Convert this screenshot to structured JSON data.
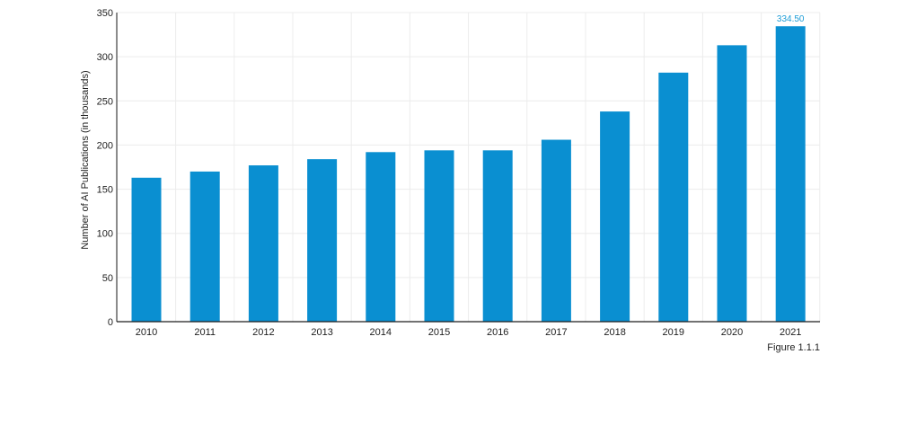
{
  "colors": {
    "bar": "#0a8fd1",
    "label": "#1a9bd6",
    "grid": "#ececec",
    "axis": "#1e1e1e"
  },
  "figure_label": "Figure 1.1.1",
  "chart_data": {
    "type": "bar",
    "title": "",
    "xlabel": "",
    "ylabel": "Number of AI Publications (in thousands)",
    "categories": [
      "2010",
      "2011",
      "2012",
      "2013",
      "2014",
      "2015",
      "2016",
      "2017",
      "2018",
      "2019",
      "2020",
      "2021"
    ],
    "values": [
      163,
      170,
      177,
      184,
      192,
      194,
      194,
      206,
      238,
      282,
      313,
      334.5
    ],
    "ylim": [
      0,
      350
    ],
    "yticks": [
      0,
      50,
      100,
      150,
      200,
      250,
      300,
      350
    ],
    "data_labels": [
      {
        "category": "2021",
        "text": "334.50"
      }
    ],
    "grid": true,
    "legend": "none"
  }
}
